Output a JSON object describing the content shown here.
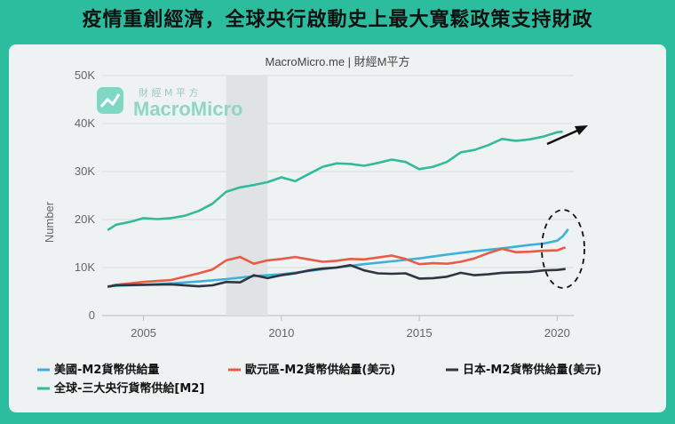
{
  "headline": "疫情重創經濟，全球央行啟動史上最大寬鬆政策支持財政",
  "chart_data": {
    "type": "line",
    "subtitle": "MacroMicro.me | 財經M平方",
    "ylabel": "Number",
    "xlabel": "",
    "xlim": [
      2003.5,
      2020.6
    ],
    "ylim": [
      0,
      50000
    ],
    "x_ticks": [
      2005,
      2010,
      2015,
      2020
    ],
    "y_ticks": [
      0,
      10000,
      20000,
      30000,
      40000,
      50000
    ],
    "y_tick_labels": [
      "0",
      "10K",
      "20K",
      "30K",
      "40K",
      "50K"
    ],
    "grid": true,
    "legend_position": "bottom",
    "shaded_region": [
      2008.0,
      2009.5
    ],
    "watermark": {
      "small": "財 經 M 平 方",
      "brand": "MacroMicro"
    },
    "annotations": [
      "arrow-up-right",
      "dashed-ellipse-around-2020"
    ],
    "series": [
      {
        "name": "美國-M2貨幣供給量",
        "color": "#3eb1d9",
        "x": [
          2003.7,
          2004,
          2005,
          2006,
          2007,
          2008,
          2009,
          2010,
          2011,
          2012,
          2013,
          2014,
          2015,
          2016,
          2017,
          2018,
          2019,
          2019.5,
          2020,
          2020.2,
          2020.4
        ],
        "y": [
          6100,
          6200,
          6400,
          6700,
          7100,
          7600,
          8200,
          8600,
          9300,
          10000,
          10700,
          11300,
          11900,
          12700,
          13400,
          14000,
          14700,
          15000,
          15600,
          16500,
          18000
        ]
      },
      {
        "name": "歐元區-M2貨幣供給量(美元)",
        "color": "#e95b46",
        "x": [
          2003.7,
          2004,
          2005,
          2006,
          2007,
          2007.5,
          2008,
          2008.5,
          2009,
          2009.5,
          2010,
          2010.5,
          2011,
          2011.5,
          2012,
          2012.5,
          2013,
          2013.5,
          2014,
          2014.5,
          2015,
          2015.5,
          2016,
          2016.5,
          2017,
          2017.5,
          2018,
          2018.5,
          2019,
          2019.5,
          2020,
          2020.3
        ],
        "y": [
          6000,
          6400,
          7000,
          7400,
          8800,
          9600,
          11500,
          12200,
          10800,
          11500,
          11800,
          12200,
          11700,
          11200,
          11400,
          11800,
          11700,
          12100,
          12500,
          11800,
          10700,
          10900,
          10800,
          11200,
          11900,
          13000,
          13900,
          13200,
          13300,
          13500,
          13600,
          14200
        ]
      },
      {
        "name": "日本-M2貨幣供給量(美元)",
        "color": "#2f3640",
        "x": [
          2003.7,
          2004,
          2005,
          2006,
          2007,
          2007.5,
          2008,
          2008.5,
          2009,
          2009.5,
          2010,
          2010.5,
          2011,
          2011.5,
          2012,
          2012.5,
          2013,
          2013.5,
          2014,
          2014.5,
          2015,
          2015.5,
          2016,
          2016.5,
          2017,
          2017.5,
          2018,
          2018.5,
          2019,
          2019.5,
          2020,
          2020.3
        ],
        "y": [
          6000,
          6300,
          6400,
          6500,
          6100,
          6300,
          7000,
          6900,
          8400,
          7800,
          8400,
          8800,
          9400,
          9800,
          10000,
          10500,
          9400,
          8800,
          8700,
          8800,
          7700,
          7800,
          8100,
          8900,
          8400,
          8600,
          8900,
          9000,
          9100,
          9400,
          9500,
          9700
        ]
      },
      {
        "name": "全球-三大央行貨幣供給[M2]",
        "color": "#35b99b",
        "x": [
          2003.7,
          2004,
          2004.5,
          2005,
          2005.5,
          2006,
          2006.5,
          2007,
          2007.5,
          2008,
          2008.5,
          2009,
          2009.5,
          2010,
          2010.5,
          2011,
          2011.5,
          2012,
          2012.5,
          2013,
          2013.5,
          2014,
          2014.5,
          2015,
          2015.5,
          2016,
          2016.5,
          2017,
          2017.5,
          2018,
          2018.5,
          2019,
          2019.5,
          2020,
          2020.2
        ],
        "y": [
          17800,
          18900,
          19500,
          20300,
          20100,
          20300,
          20800,
          21800,
          23300,
          25800,
          26700,
          27200,
          27800,
          28800,
          28000,
          29500,
          31000,
          31700,
          31600,
          31200,
          31800,
          32500,
          32000,
          30500,
          31000,
          32000,
          34000,
          34500,
          35500,
          36800,
          36400,
          36700,
          37300,
          38200,
          38300
        ]
      }
    ]
  }
}
